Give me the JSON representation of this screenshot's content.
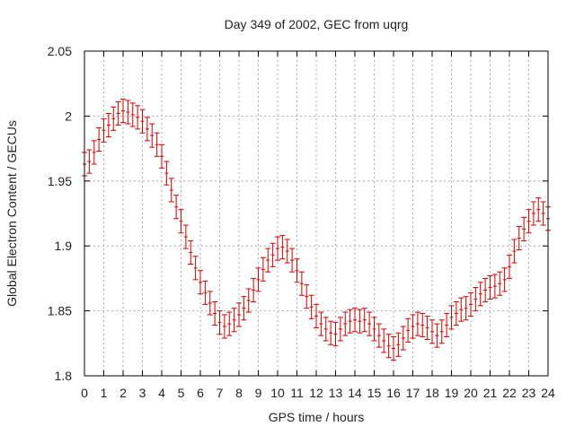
{
  "chart_data": {
    "type": "scatter",
    "title": "Day 349 of 2002, GEC from uqrg",
    "xlabel": "GPS time / hours",
    "ylabel": "Global Electron Content / GECUs",
    "xlim": [
      0,
      24
    ],
    "ylim": [
      1.8,
      2.05
    ],
    "x_ticks": [
      0,
      1,
      2,
      3,
      4,
      5,
      6,
      7,
      8,
      9,
      10,
      11,
      12,
      13,
      14,
      15,
      16,
      17,
      18,
      19,
      20,
      21,
      22,
      23,
      24
    ],
    "x_tick_labels": [
      "0",
      "1",
      "2",
      "3",
      "4",
      "5",
      "6",
      "7",
      "8",
      "9",
      "10",
      "11",
      "12",
      "13",
      "14",
      "15",
      "16",
      "17",
      "18",
      "19",
      "20",
      "21",
      "22",
      "23",
      "24"
    ],
    "y_ticks": [
      1.8,
      1.85,
      1.9,
      1.95,
      2.0,
      2.05
    ],
    "y_tick_labels": [
      "1.8",
      "1.85",
      "1.9",
      "1.95",
      "2",
      "2.05"
    ],
    "grid": true,
    "error_bar_half_width": 0.009,
    "color": "#cc0000",
    "series": [
      {
        "x": [
          0,
          0.25,
          0.5,
          0.75,
          1,
          1.25,
          1.5,
          1.75,
          2,
          2.25,
          2.5,
          2.75,
          3,
          3.25,
          3.5,
          3.75,
          4,
          4.25,
          4.5,
          4.75,
          5,
          5.25,
          5.5,
          5.75,
          6,
          6.25,
          6.5,
          6.75,
          7,
          7.25,
          7.5,
          7.75,
          8,
          8.25,
          8.5,
          8.75,
          9,
          9.25,
          9.5,
          9.75,
          10,
          10.25,
          10.5,
          10.75,
          11,
          11.25,
          11.5,
          11.75,
          12,
          12.25,
          12.5,
          12.75,
          13,
          13.25,
          13.5,
          13.75,
          14,
          14.25,
          14.5,
          14.75,
          15,
          15.25,
          15.5,
          15.75,
          16,
          16.25,
          16.5,
          16.75,
          17,
          17.25,
          17.5,
          17.75,
          18,
          18.25,
          18.5,
          18.75,
          19,
          19.25,
          19.5,
          19.75,
          20,
          20.25,
          20.5,
          20.75,
          21,
          21.25,
          21.5,
          21.75,
          22,
          22.25,
          22.5,
          22.75,
          23,
          23.25,
          23.5,
          23.75,
          24
        ],
        "y": [
          1.963,
          1.965,
          1.972,
          1.982,
          1.989,
          1.993,
          1.998,
          2.002,
          2.004,
          2.003,
          2.001,
          1.999,
          1.996,
          1.99,
          1.985,
          1.978,
          1.969,
          1.956,
          1.943,
          1.93,
          1.919,
          1.907,
          1.895,
          1.883,
          1.872,
          1.864,
          1.856,
          1.848,
          1.841,
          1.838,
          1.84,
          1.843,
          1.847,
          1.852,
          1.858,
          1.866,
          1.874,
          1.882,
          1.889,
          1.893,
          1.898,
          1.899,
          1.896,
          1.889,
          1.881,
          1.871,
          1.861,
          1.853,
          1.846,
          1.84,
          1.836,
          1.833,
          1.832,
          1.836,
          1.84,
          1.842,
          1.843,
          1.842,
          1.843,
          1.84,
          1.836,
          1.831,
          1.827,
          1.823,
          1.821,
          1.824,
          1.829,
          1.835,
          1.838,
          1.84,
          1.839,
          1.837,
          1.834,
          1.831,
          1.834,
          1.839,
          1.845,
          1.848,
          1.851,
          1.852,
          1.855,
          1.859,
          1.863,
          1.866,
          1.868,
          1.869,
          1.871,
          1.874,
          1.884,
          1.896,
          1.906,
          1.913,
          1.919,
          1.925,
          1.928,
          1.925,
          1.921
        ]
      }
    ]
  }
}
